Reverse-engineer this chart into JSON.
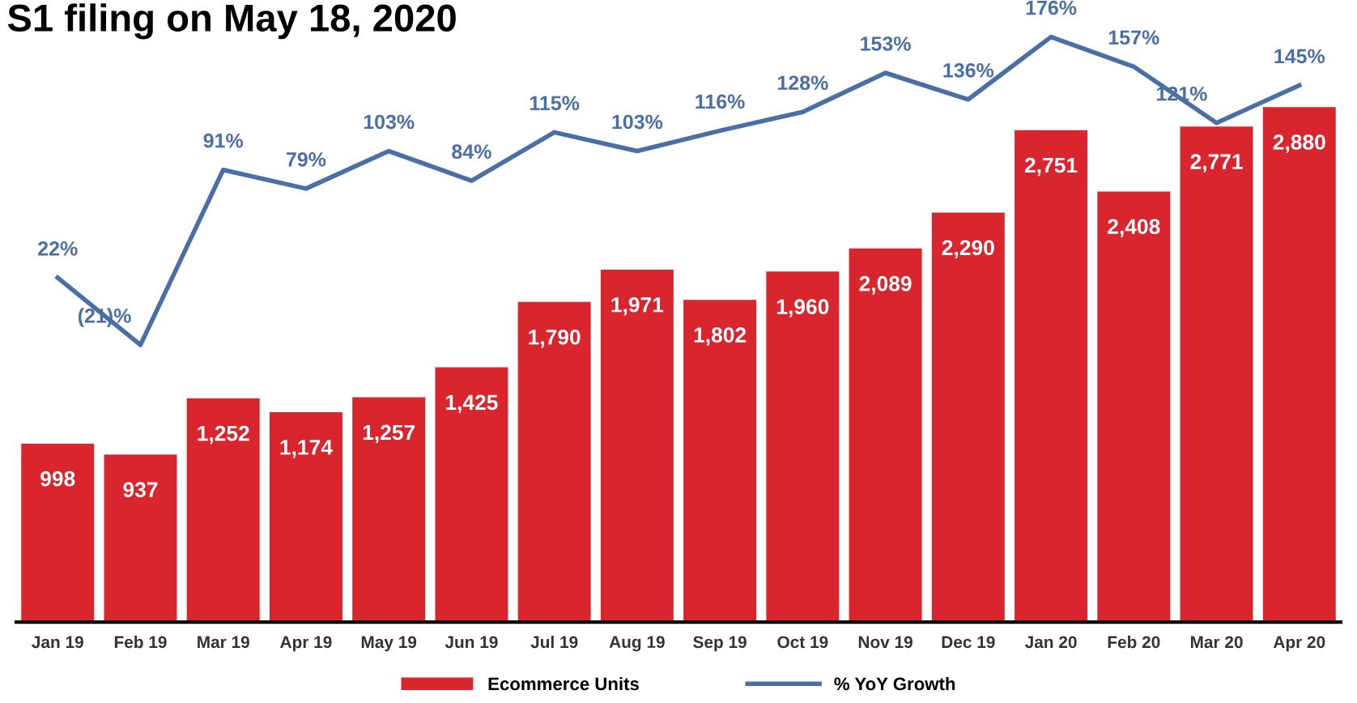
{
  "chart_data": {
    "type": "bar",
    "title": "S1 filing on May 18, 2020",
    "categories": [
      "Jan 19",
      "Feb 19",
      "Mar 19",
      "Apr 19",
      "May 19",
      "Jun 19",
      "Jul 19",
      "Aug 19",
      "Sep 19",
      "Oct 19",
      "Nov 19",
      "Dec 19",
      "Jan 20",
      "Feb 20",
      "Mar 20",
      "Apr 20"
    ],
    "series": [
      {
        "name": "Ecommerce Units",
        "color": "#d9262e",
        "values": [
          998,
          937,
          1252,
          1174,
          1257,
          1425,
          1790,
          1971,
          1802,
          1960,
          2089,
          2290,
          2751,
          2408,
          2771,
          2880
        ],
        "value_labels": [
          "998",
          "937",
          "1,252",
          "1,174",
          "1,257",
          "1,425",
          "1,790",
          "1,971",
          "1,802",
          "1,960",
          "2,089",
          "2,290",
          "2,751",
          "2,408",
          "2,771",
          "2,880"
        ]
      },
      {
        "name": "% YoY Growth",
        "type": "line",
        "axis": "y2",
        "color": "#4a6fa5",
        "values": [
          22,
          -21,
          91,
          79,
          103,
          84,
          115,
          103,
          116,
          128,
          153,
          136,
          176,
          157,
          121,
          145
        ],
        "value_labels": [
          "22%",
          "(21)%",
          "91%",
          "79%",
          "103%",
          "84%",
          "115%",
          "103%",
          "116%",
          "128%",
          "153%",
          "136%",
          "176%",
          "157%",
          "121%",
          "145%"
        ]
      }
    ],
    "legend": "bottom",
    "marker": "none",
    "line_style": "solid"
  }
}
